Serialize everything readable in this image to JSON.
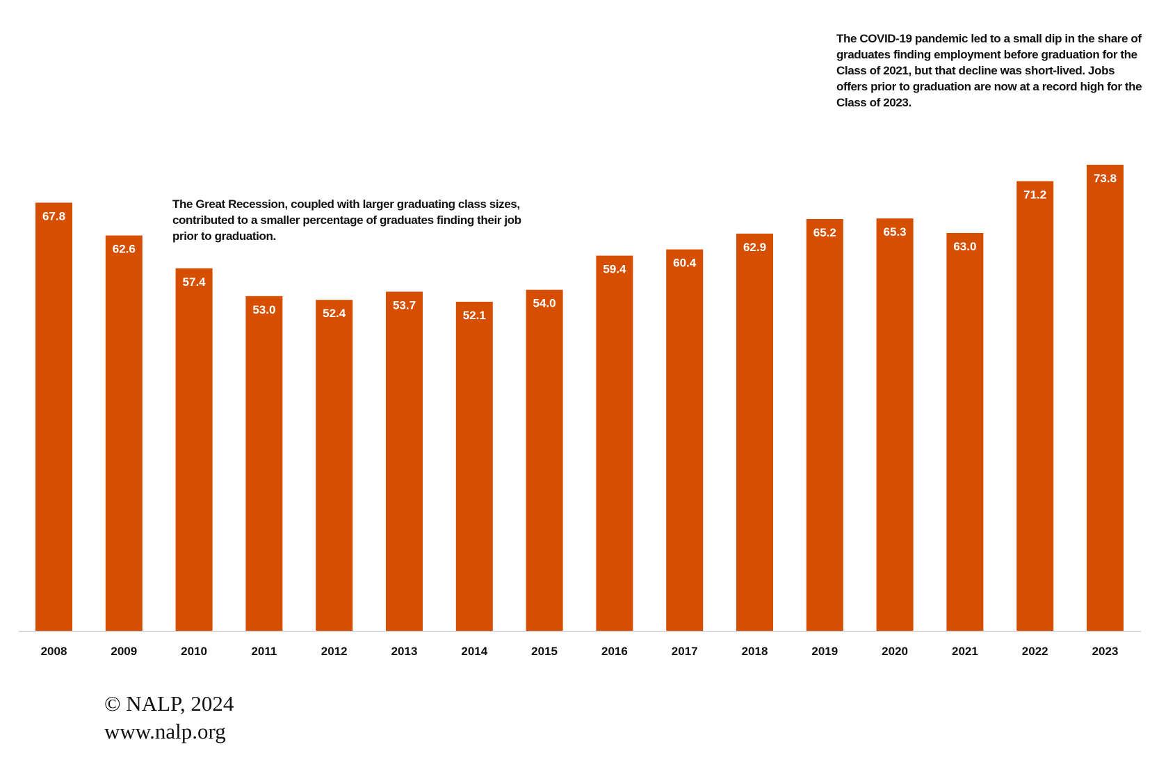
{
  "chart_data": {
    "type": "bar",
    "title": "",
    "xlabel": "",
    "ylabel": "",
    "categories": [
      "2008",
      "2009",
      "2010",
      "2011",
      "2012",
      "2013",
      "2014",
      "2015",
      "2016",
      "2017",
      "2018",
      "2019",
      "2020",
      "2021",
      "2022",
      "2023"
    ],
    "values": [
      67.8,
      62.6,
      57.4,
      53.0,
      52.4,
      53.7,
      52.1,
      54.0,
      59.4,
      60.4,
      62.9,
      65.2,
      65.3,
      63.0,
      71.2,
      73.8
    ],
    "value_labels": [
      "67.8",
      "62.6",
      "57.4",
      "53.0",
      "52.4",
      "53.7",
      "52.1",
      "54.0",
      "59.4",
      "60.4",
      "62.9",
      "65.2",
      "65.3",
      "63.0",
      "71.2",
      "73.8"
    ],
    "ylim": [
      0,
      80
    ],
    "grid": false,
    "legend": "none",
    "bar_color": "#D64F00",
    "annotations": [
      {
        "id": "recession",
        "lines": [
          "The Great Recession, coupled with larger graduating class sizes,",
          "contributed to a smaller percentage of graduates finding their job",
          "prior to graduation."
        ]
      },
      {
        "id": "covid",
        "lines": [
          "The COVID-19 pandemic led to a small dip in the share of",
          "graduates finding employment before graduation for the",
          "Class of 2021, but that decline was short-lived. Jobs",
          "offers prior to graduation are now at a record high for the",
          "Class of 2023."
        ]
      }
    ]
  },
  "footer": {
    "copyright": "© NALP, 2024",
    "url": "www.nalp.org"
  }
}
